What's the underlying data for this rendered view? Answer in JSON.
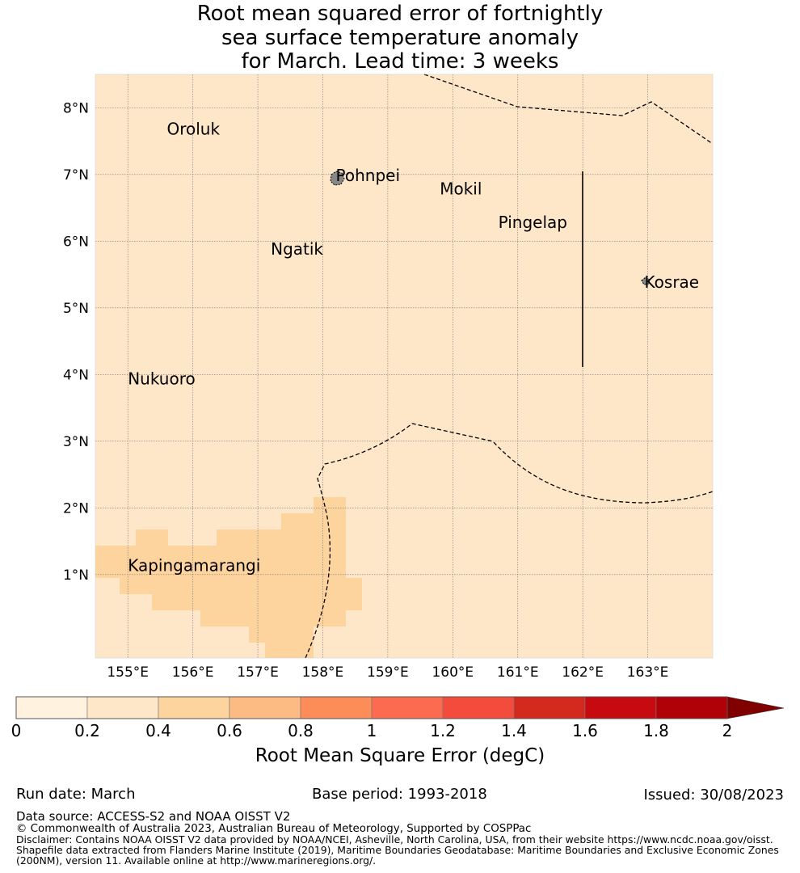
{
  "title": {
    "line1": "Root mean squared error of fortnightly",
    "line2": "sea surface temperature anomaly",
    "line3": "for March. Lead time: 3 weeks"
  },
  "map": {
    "background_color": "#FEE6C8",
    "longitude_range": [
      154.5,
      164.0
    ],
    "latitude_range": [
      -0.25,
      8.5
    ],
    "x_ticks": [
      "155°E",
      "156°E",
      "157°E",
      "158°E",
      "159°E",
      "160°E",
      "161°E",
      "162°E",
      "163°E"
    ],
    "y_ticks": [
      "1°N",
      "2°N",
      "3°N",
      "4°N",
      "5°N",
      "6°N",
      "7°N",
      "8°N"
    ],
    "locations": [
      {
        "name": "Oroluk",
        "lon": 155.6,
        "lat": 7.6
      },
      {
        "name": "Pohnpei",
        "lon": 158.2,
        "lat": 6.9
      },
      {
        "name": "Mokil",
        "lon": 159.8,
        "lat": 6.7
      },
      {
        "name": "Pingelap",
        "lon": 160.7,
        "lat": 6.2
      },
      {
        "name": "Ngatik",
        "lon": 157.2,
        "lat": 5.8
      },
      {
        "name": "Kosrae",
        "lon": 162.95,
        "lat": 5.3
      },
      {
        "name": "Nukuoro",
        "lon": 155.0,
        "lat": 3.85
      },
      {
        "name": "Kapingamarangi",
        "lon": 155.0,
        "lat": 1.05
      }
    ],
    "elevated_error_region": {
      "value_range": [
        0.4,
        0.6
      ],
      "color": "#FDD49E"
    },
    "boundary_color": "#000000"
  },
  "colorbar": {
    "label": "Root Mean Square Error (degC)",
    "ticks": [
      "0",
      "0.2",
      "0.4",
      "0.6",
      "0.8",
      "1",
      "1.2",
      "1.4",
      "1.6",
      "1.8",
      "2"
    ],
    "colors": [
      "#FFF3E0",
      "#FEE6C8",
      "#FDD49E",
      "#FDBB84",
      "#FC8D59",
      "#FC6A50",
      "#F44C3C",
      "#D42A1E",
      "#C70A10",
      "#B00008"
    ],
    "extend_color": "#800000"
  },
  "footer": {
    "run_date": "Run date: March",
    "base_period": "Base period: 1993-2018",
    "issued": "Issued: 30/08/2023",
    "data_source": "Data source: ACCESS-S2 and NOAA OISST V2",
    "copyright": "© Commonwealth of Australia 2023, Australian Bureau of Meteorology, Supported by COSPPac",
    "disclaimer1": "Disclaimer: Contains NOAA OISST V2 data provided by NOAA/NCEI, Asheville, North Carolina, USA, from their website https://www.ncdc.noaa.gov/oisst.",
    "disclaimer2": "Shapefile data extracted from Flanders Marine Institute (2019), Maritime Boundaries Geodatabase: Maritime Boundaries and Exclusive Economic Zones",
    "disclaimer3": "(200NM), version 11. Available online at http://www.marineregions.org/."
  }
}
